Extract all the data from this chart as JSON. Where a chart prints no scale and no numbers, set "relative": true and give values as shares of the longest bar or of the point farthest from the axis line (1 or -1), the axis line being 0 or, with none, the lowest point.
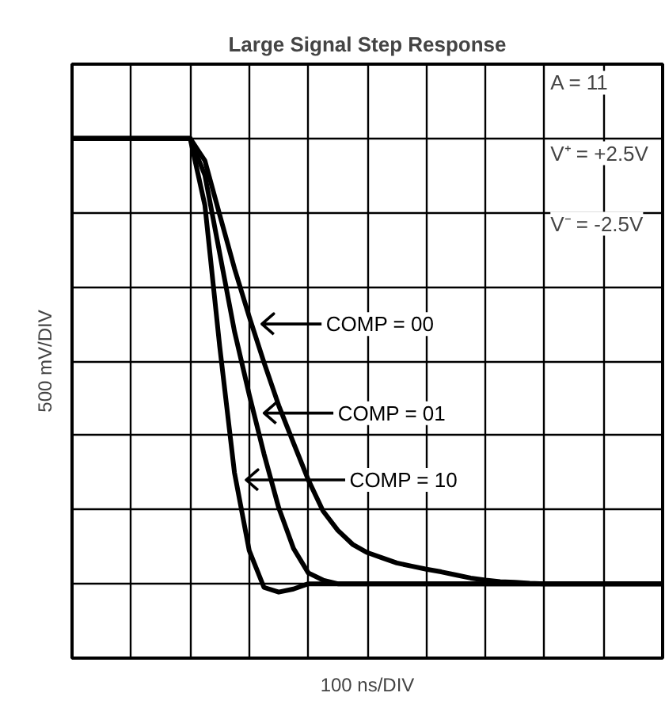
{
  "chart_data": {
    "type": "line",
    "title": "Large Signal Step Response",
    "xlabel": "100 ns/DIV",
    "ylabel": "500 mV/DIV",
    "relative": true,
    "grid": true,
    "legend": "center",
    "marker": "none",
    "line_style": "solid",
    "annotations": [
      "A = 11",
      "V⁺ = +2.5V",
      "V⁻ = -2.5V"
    ],
    "categories": [
      null,
      null,
      null,
      null,
      null,
      null,
      null,
      null,
      null,
      null,
      null,
      null,
      null,
      null,
      null,
      null,
      null,
      null,
      null,
      null,
      null,
      null,
      null,
      null,
      null,
      null,
      null,
      null,
      null,
      null,
      null,
      null,
      null,
      null,
      null,
      null,
      null,
      null,
      null,
      null,
      null
    ],
    "series": [
      {
        "name": "COMP = 00",
        "color": "#000000",
        "values": [
          1,
          1,
          1,
          1,
          1,
          1,
          1,
          1,
          1,
          0.957,
          0.853,
          0.75,
          0.657,
          0.569,
          0.486,
          0.414,
          0.343,
          0.283,
          0.246,
          0.219,
          0.203,
          0.193,
          0.183,
          0.177,
          0.171,
          0.166,
          0.16,
          0.154,
          0.15,
          0.147,
          0.146,
          0.144,
          0.143,
          0.143,
          0.143,
          0.143,
          0.143,
          0.143,
          0.143,
          0.143,
          0.143
        ]
      },
      {
        "name": "COMP = 01",
        "color": "#000000",
        "values": [
          1,
          1,
          1,
          1,
          1,
          1,
          1,
          1,
          1,
          0.929,
          0.779,
          0.629,
          0.507,
          0.393,
          0.289,
          0.211,
          0.164,
          0.15,
          0.143,
          0.143,
          0.143,
          0.143,
          0.143,
          0.143,
          0.143,
          0.143,
          0.143,
          0.143,
          0.143,
          0.143,
          0.143,
          0.143,
          0.143,
          0.143,
          0.143,
          0.143,
          0.143,
          0.143,
          0.143,
          0.143,
          0.143
        ]
      },
      {
        "name": "COMP = 10",
        "color": "#000000",
        "values": [
          1,
          1,
          1,
          1,
          1,
          1,
          1,
          1,
          1,
          0.871,
          0.6,
          0.357,
          0.207,
          0.136,
          0.127,
          0.133,
          0.143,
          0.143,
          0.143,
          0.143,
          0.143,
          0.143,
          0.143,
          0.143,
          0.143,
          0.143,
          0.143,
          0.143,
          0.143,
          0.143,
          0.143,
          0.143,
          0.143,
          0.143,
          0.143,
          0.143,
          0.143,
          0.143,
          0.143,
          0.143,
          0.143
        ]
      }
    ]
  }
}
